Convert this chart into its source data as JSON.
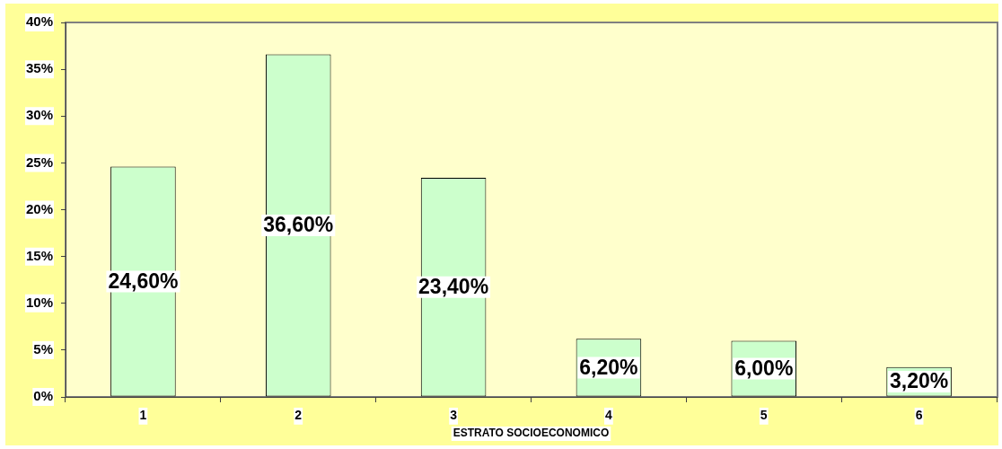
{
  "chart_data": {
    "type": "bar",
    "xlabel": "ESTRATO SOCIOECONOMICO",
    "categories": [
      "1",
      "2",
      "3",
      "4",
      "5",
      "6"
    ],
    "values": [
      24.6,
      36.6,
      23.4,
      6.2,
      6.0,
      3.2
    ],
    "color": "#ccffcc",
    "value_labels": [
      "24,60%",
      "36,60%",
      "23,40%",
      "6,20%",
      "6,00%",
      "3,20%"
    ],
    "ylim": [
      0,
      40
    ],
    "yticks": [
      {
        "value": 0,
        "label": "0%"
      },
      {
        "value": 5,
        "label": "5%"
      },
      {
        "value": 10,
        "label": "10%"
      },
      {
        "value": 15,
        "label": "15%"
      },
      {
        "value": 20,
        "label": "20%"
      },
      {
        "value": 25,
        "label": "25%"
      },
      {
        "value": 30,
        "label": "30%"
      },
      {
        "value": 35,
        "label": "35%"
      },
      {
        "value": 40,
        "label": "40%"
      }
    ]
  }
}
